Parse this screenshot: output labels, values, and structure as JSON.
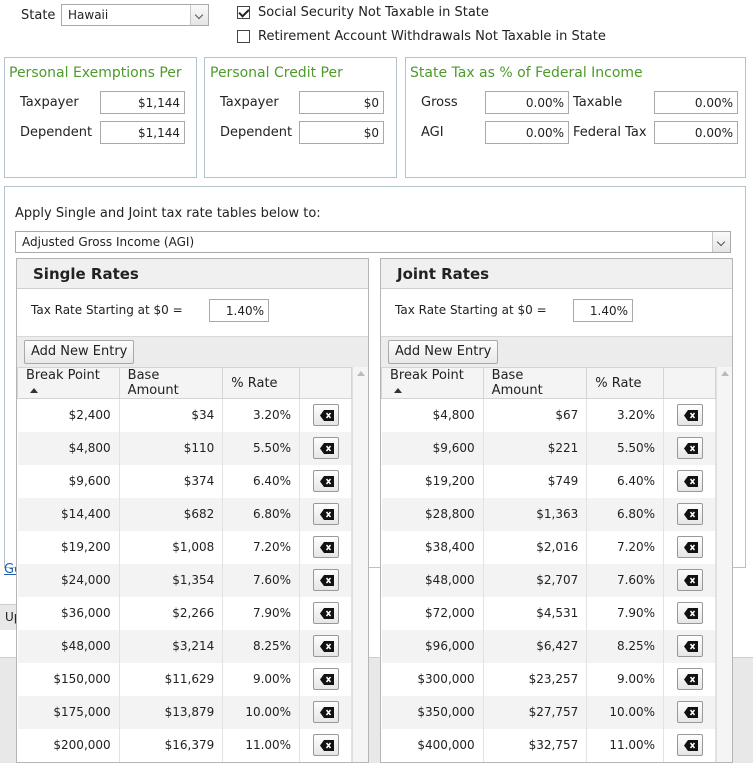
{
  "state": {
    "label": "State",
    "value": "Hawaii"
  },
  "options": {
    "social_security_label": "Social Security Not Taxable in State",
    "social_security_checked": true,
    "retirement_label": "Retirement Account Withdrawals Not Taxable in State",
    "retirement_checked": false
  },
  "exemptions": {
    "title": "Personal Exemptions Per",
    "taxpayer_label": "Taxpayer",
    "taxpayer_value": "$1,144",
    "dependent_label": "Dependent",
    "dependent_value": "$1,144"
  },
  "credit": {
    "title": "Personal Credit Per",
    "taxpayer_label": "Taxpayer",
    "taxpayer_value": "$0",
    "dependent_label": "Dependent",
    "dependent_value": "$0"
  },
  "state_tax": {
    "title": "State Tax as % of Federal Income",
    "gross_label": "Gross",
    "gross_value": "0.00%",
    "taxable_label": "Taxable",
    "taxable_value": "0.00%",
    "agi_label": "AGI",
    "agi_value": "0.00%",
    "federal_label": "Federal Tax",
    "federal_value": "0.00%"
  },
  "apply": {
    "label": "Apply Single and Joint tax rate tables below to:",
    "value": "Adjusted Gross Income (AGI)"
  },
  "single": {
    "title": "Single Rates",
    "start_label": "Tax Rate Starting at $0 =",
    "start_value": "1.40%",
    "add_label": "Add New Entry",
    "columns": [
      "Break Point",
      "Base Amount",
      "% Rate"
    ],
    "rows": [
      [
        "$2,400",
        "$34",
        "3.20%"
      ],
      [
        "$4,800",
        "$110",
        "5.50%"
      ],
      [
        "$9,600",
        "$374",
        "6.40%"
      ],
      [
        "$14,400",
        "$682",
        "6.80%"
      ],
      [
        "$19,200",
        "$1,008",
        "7.20%"
      ],
      [
        "$24,000",
        "$1,354",
        "7.60%"
      ],
      [
        "$36,000",
        "$2,266",
        "7.90%"
      ],
      [
        "$48,000",
        "$3,214",
        "8.25%"
      ],
      [
        "$150,000",
        "$11,629",
        "9.00%"
      ],
      [
        "$175,000",
        "$13,879",
        "10.00%"
      ],
      [
        "$200,000",
        "$16,379",
        "11.00%"
      ]
    ]
  },
  "joint": {
    "title": "Joint Rates",
    "start_label": "Tax Rate Starting at $0 =",
    "start_value": "1.40%",
    "add_label": "Add New Entry",
    "columns": [
      "Break Point",
      "Base Amount",
      "% Rate"
    ],
    "rows": [
      [
        "$4,800",
        "$67",
        "3.20%"
      ],
      [
        "$9,600",
        "$221",
        "5.50%"
      ],
      [
        "$19,200",
        "$749",
        "6.40%"
      ],
      [
        "$28,800",
        "$1,363",
        "6.80%"
      ],
      [
        "$38,400",
        "$2,016",
        "7.20%"
      ],
      [
        "$48,000",
        "$2,707",
        "7.60%"
      ],
      [
        "$72,000",
        "$4,531",
        "7.90%"
      ],
      [
        "$96,000",
        "$6,427",
        "8.25%"
      ],
      [
        "$300,000",
        "$23,257",
        "9.00%"
      ],
      [
        "$350,000",
        "$27,757",
        "10.00%"
      ],
      [
        "$400,000",
        "$32,757",
        "11.00%"
      ]
    ]
  },
  "partial": {
    "link_text": "Go",
    "button_text": "Up"
  }
}
